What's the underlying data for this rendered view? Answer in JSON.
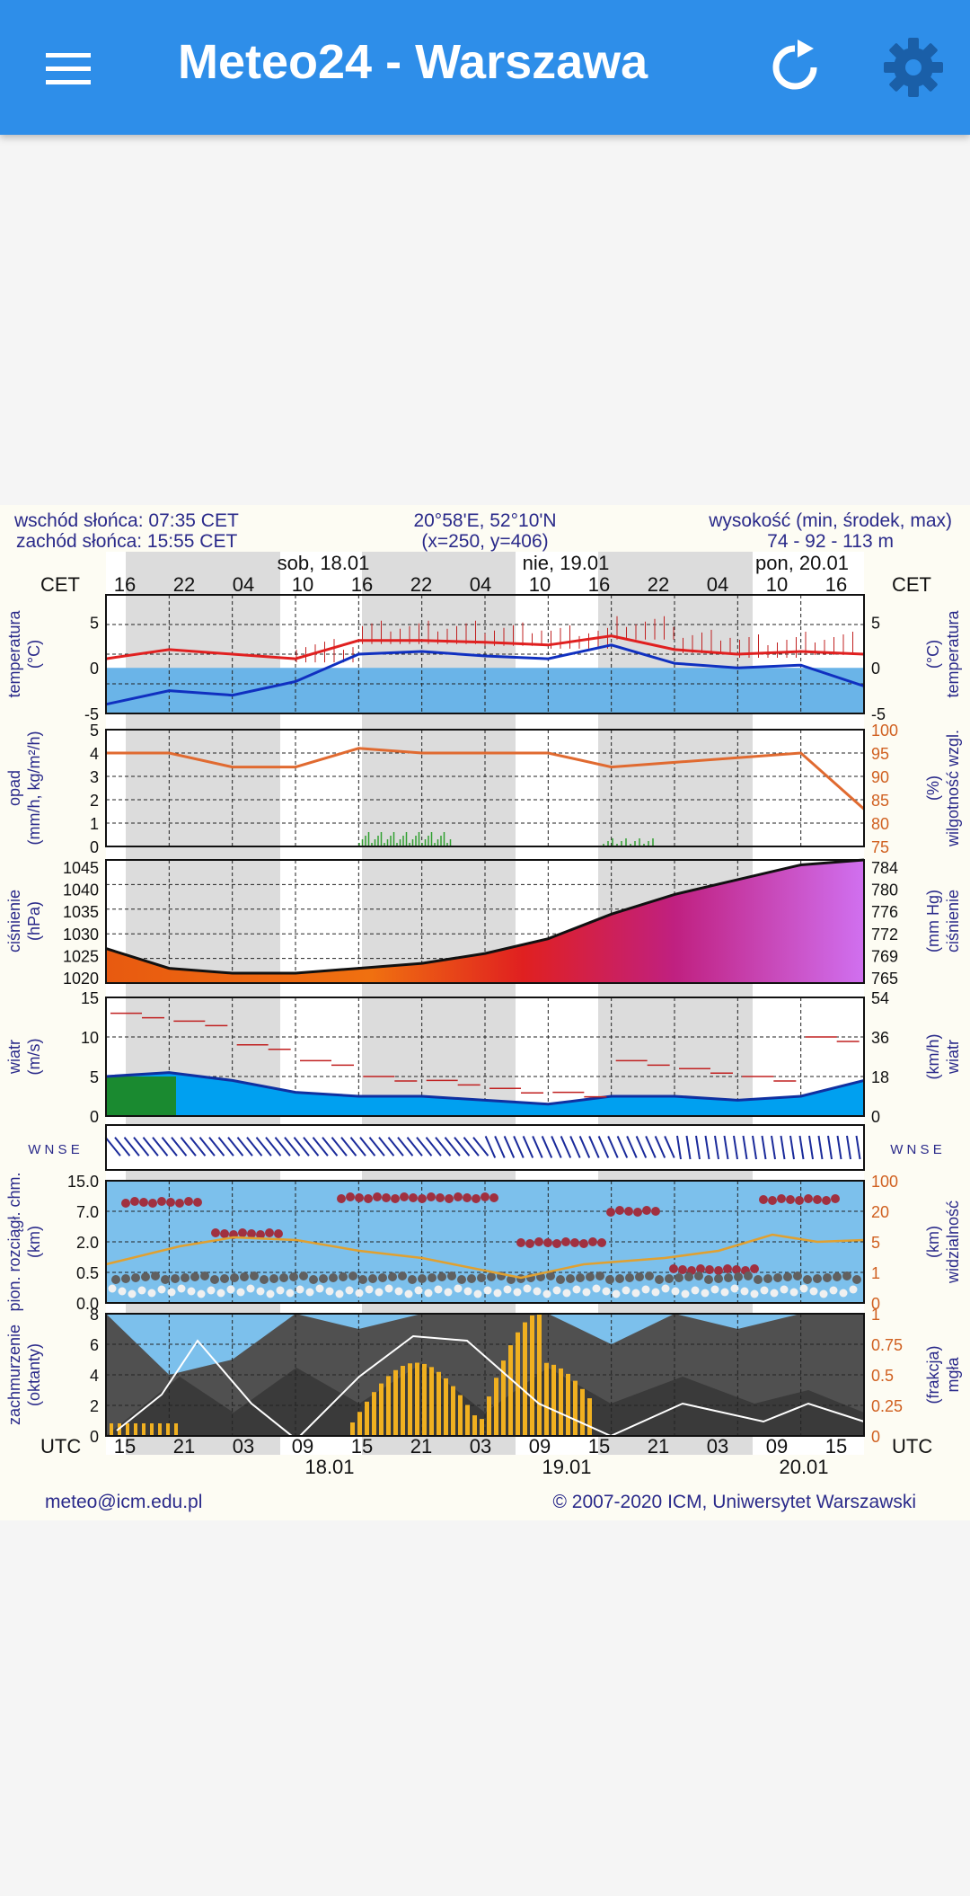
{
  "app": {
    "title": "Meteo24 - Warszawa"
  },
  "icons": {
    "menu": "menu-icon",
    "refresh": "refresh-icon",
    "settings": "gear-icon"
  },
  "colors": {
    "appbar": "#2e8ee9",
    "temp_red": "#e02020",
    "dew_blue": "#1030c0",
    "humidity": "#e06a30",
    "pressure_fill_low": "#f07010",
    "pressure_fill_high": "#d070f0",
    "cloud_dark": "#555555",
    "fog_bars": "#f0b020"
  },
  "meteogram": {
    "sunrise": "wschód słońca: 07:35 CET",
    "sunset": "zachód słońca: 15:55 CET",
    "coords": "20°58'E, 52°10'N",
    "grid": "(x=250,  y=406)",
    "altitude_label": "wysokość (min, środek, max)",
    "altitude_values": "74 - 92 - 113 m",
    "cet": "CET",
    "utc": "UTC",
    "days_top": [
      "sob, 18.01",
      "nie, 19.01",
      "pon, 20.01"
    ],
    "hours_top": [
      "16",
      "22",
      "04",
      "10",
      "16",
      "22",
      "04",
      "10",
      "16",
      "22",
      "04",
      "10",
      "16"
    ],
    "hours_bottom": [
      "15",
      "21",
      "03",
      "09",
      "15",
      "21",
      "03",
      "09",
      "15",
      "21",
      "03",
      "09",
      "15"
    ],
    "days_bottom": [
      "18.01",
      "19.01",
      "20.01"
    ],
    "panels": {
      "temperature": {
        "left_label": "temperatura",
        "left_unit": "(°C)",
        "right_label": "temperatura",
        "right_unit": "(°C)",
        "ticks": [
          "5",
          "0",
          "-5"
        ],
        "ticks_right": [
          "5",
          "0",
          "-5"
        ]
      },
      "precip": {
        "left_label": "opad",
        "left_unit": "(mm/h, kg/m²/h)",
        "right_label": "wilgotność wzgl.",
        "right_unit": "(%)",
        "ticks": [
          "5",
          "4",
          "3",
          "2",
          "1",
          "0"
        ],
        "ticks_right": [
          "100",
          "95",
          "90",
          "85",
          "80",
          "75"
        ]
      },
      "pressure": {
        "left_label": "ciśnienie",
        "left_unit": "(hPa)",
        "right_label": "ciśnienie",
        "right_unit": "(mm Hg)",
        "ticks": [
          "1045",
          "1040",
          "1035",
          "1030",
          "1025",
          "1020"
        ],
        "ticks_right": [
          "784",
          "780",
          "776",
          "772",
          "769",
          "765"
        ]
      },
      "wind": {
        "left_label": "wiatr",
        "left_unit": "(m/s)",
        "right_label": "wiatr",
        "right_unit": "(km/h)",
        "ticks": [
          "15",
          "10",
          "5",
          "0"
        ],
        "ticks_right": [
          "54",
          "36",
          "18",
          "0"
        ]
      },
      "direction": {
        "left_label": "W N S E",
        "right_label": "W N S E"
      },
      "visibility": {
        "left_label": "pion. rozciągł. chm.",
        "left_unit": "(km)",
        "right_label": "widzialność",
        "right_unit": "(km)",
        "ticks": [
          "15.0",
          "7.0",
          "2.0",
          "0.5",
          "0.0"
        ],
        "ticks_right": [
          "100",
          "20",
          "5",
          "1",
          "0"
        ]
      },
      "clouds": {
        "left_label": "zachmurzenie",
        "left_unit": "(oktanty)",
        "right_label": "mgła",
        "right_unit": "(frakcja)",
        "ticks": [
          "8",
          "6",
          "4",
          "2",
          "0"
        ],
        "ticks_right": [
          "1",
          "0.75",
          "0.5",
          "0.25",
          "0"
        ]
      }
    },
    "footer_email": "meteo@icm.edu.pl",
    "footer_copyright": "© 2007-2020 ICM, Uniwersytet Warszawski"
  },
  "chart_data": [
    {
      "type": "line",
      "title": "temperatura",
      "ylabel": "(°C)",
      "ylim": [
        -5,
        8
      ],
      "x": [
        "16",
        "22",
        "04",
        "10",
        "16",
        "22",
        "04",
        "10",
        "16",
        "22",
        "04",
        "10",
        "16"
      ],
      "series": [
        {
          "values": [
            1.0,
            2.0,
            1.5,
            1.0,
            3.0,
            3.0,
            2.8,
            2.5,
            3.5,
            2.0,
            1.5,
            1.8,
            1.5
          ]
        },
        {
          "values": [
            -4.0,
            -2.5,
            -3.0,
            -1.5,
            1.5,
            1.8,
            1.3,
            1.0,
            2.5,
            0.5,
            0.0,
            0.3,
            -2.0
          ]
        }
      ]
    },
    {
      "type": "line",
      "title": "wilgotność wzgl.",
      "ylabel": "(%)",
      "ylim": [
        75,
        100
      ],
      "x": [
        "16",
        "22",
        "04",
        "10",
        "16",
        "22",
        "04",
        "10",
        "16",
        "22",
        "04",
        "10",
        "16"
      ],
      "series": [
        {
          "values": [
            95,
            95,
            92,
            92,
            96,
            95,
            95,
            95,
            92,
            93,
            94,
            95,
            83
          ]
        }
      ]
    },
    {
      "type": "area",
      "title": "ciśnienie",
      "ylabel": "(hPa)",
      "ylim": [
        1020,
        1045
      ],
      "x": [
        "16",
        "22",
        "04",
        "10",
        "16",
        "22",
        "04",
        "10",
        "16",
        "22",
        "04",
        "10",
        "16"
      ],
      "series": [
        {
          "values": [
            1027,
            1023,
            1022,
            1022,
            1023,
            1024,
            1026,
            1029,
            1034,
            1038,
            1041,
            1044,
            1045
          ]
        }
      ]
    },
    {
      "type": "line",
      "title": "wiatr",
      "ylabel": "(m/s)",
      "ylim": [
        0,
        15
      ],
      "x": [
        "16",
        "22",
        "04",
        "10",
        "16",
        "22",
        "04",
        "10",
        "16",
        "22",
        "04",
        "10",
        "16"
      ],
      "series": [
        {
          "values": [
            5.0,
            5.5,
            4.5,
            3.0,
            2.5,
            2.5,
            2.0,
            1.5,
            2.5,
            2.5,
            2.0,
            2.5,
            4.5
          ]
        },
        {
          "values": [
            13.0,
            12.0,
            9.0,
            7.0,
            5.0,
            4.5,
            3.5,
            3.0,
            7.0,
            6.0,
            5.0,
            10.0,
            10.0
          ]
        }
      ]
    },
    {
      "type": "bar",
      "title": "zachmurzenie",
      "ylabel": "(oktanty)",
      "ylim": [
        0,
        8
      ],
      "x": [
        "15",
        "21",
        "03",
        "09",
        "15",
        "21",
        "03",
        "09",
        "15",
        "21",
        "03",
        "09",
        "15"
      ],
      "series": [
        {
          "values": [
            8,
            4,
            5,
            8,
            7,
            8,
            8,
            8,
            6,
            8,
            7,
            8,
            8
          ]
        }
      ]
    }
  ]
}
